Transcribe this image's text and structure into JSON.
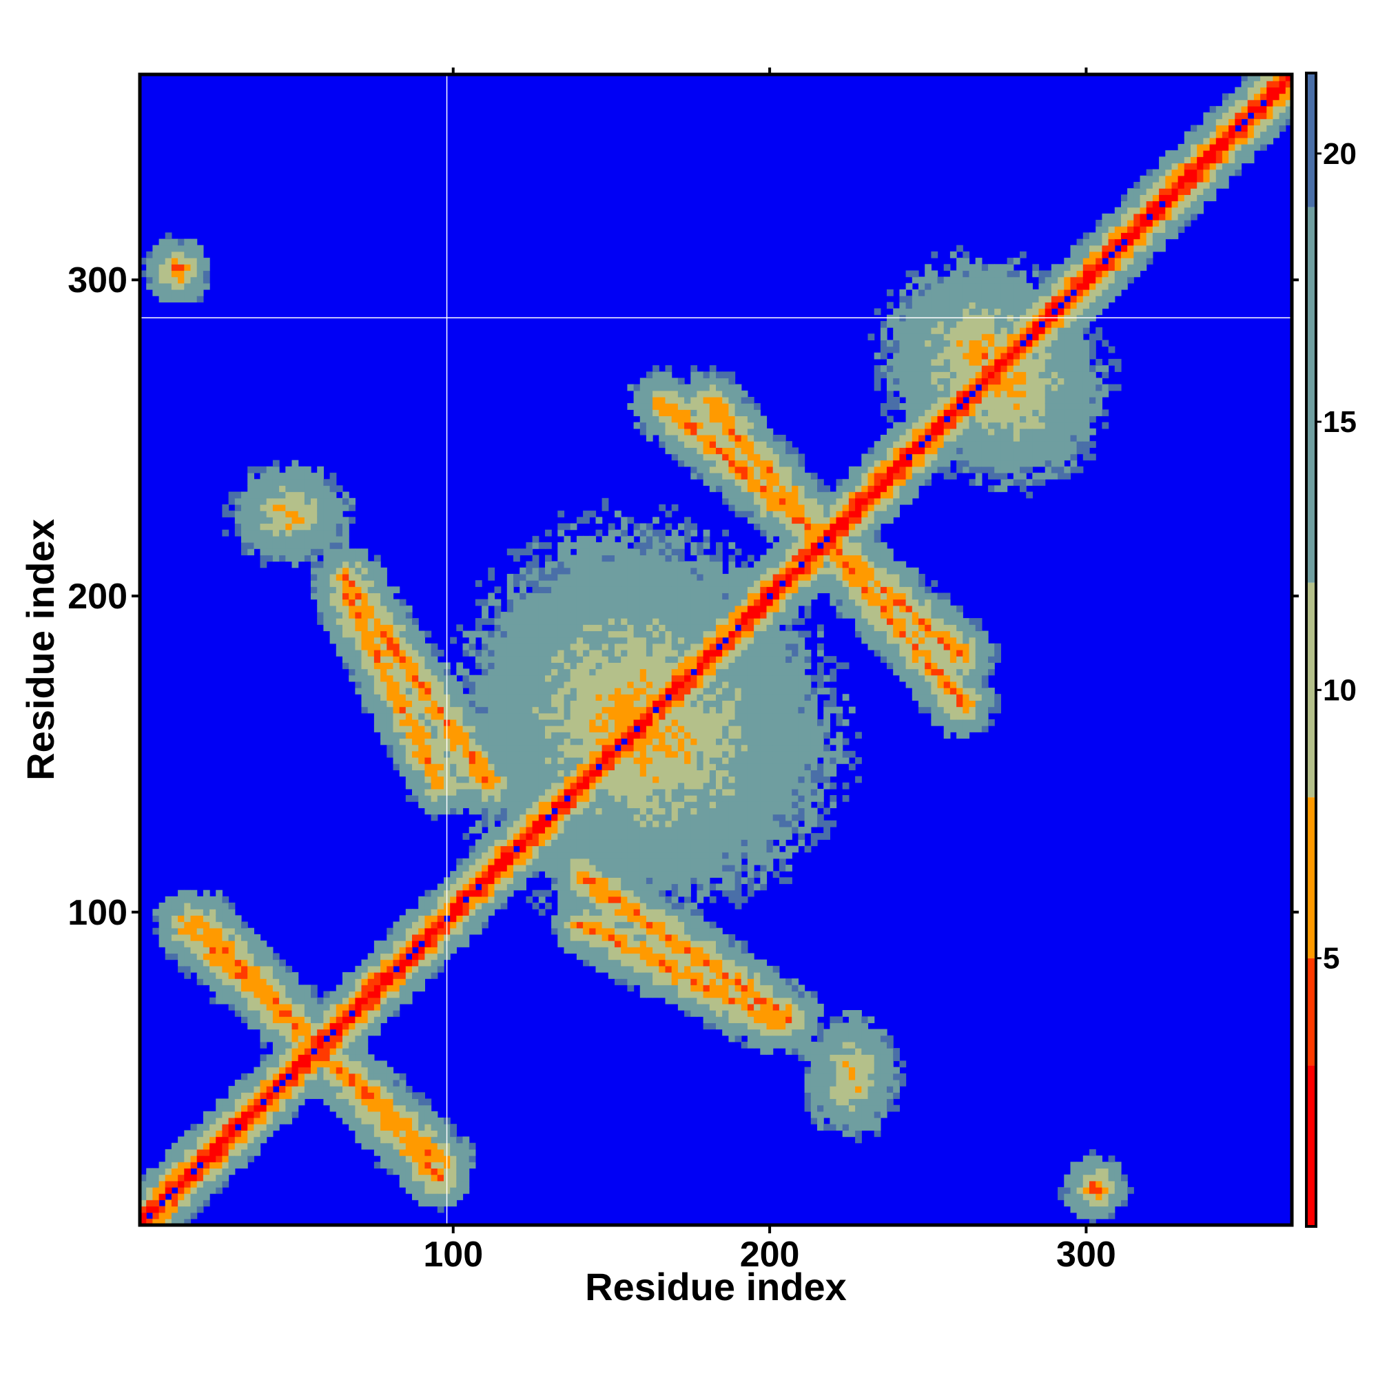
{
  "chart_data": {
    "type": "heatmap",
    "title": "",
    "xlabel": "Residue index",
    "ylabel": "Residue index",
    "xlim": [
      1,
      365
    ],
    "ylim": [
      1,
      365
    ],
    "x_ticks": [
      100,
      200,
      300
    ],
    "y_ticks": [
      100,
      200,
      300
    ],
    "x_tick_labels": [
      "100",
      "200",
      "300"
    ],
    "y_tick_labels": [
      "100",
      "200",
      "300"
    ],
    "colorbar": {
      "range": [
        0,
        21.5
      ],
      "ticks": [
        5,
        10,
        15,
        20
      ],
      "tick_labels": [
        "5",
        "10",
        "15",
        "20"
      ],
      "colors": [
        {
          "from": 0,
          "to": 3,
          "color": "#ff0000"
        },
        {
          "from": 3,
          "to": 5,
          "color": "#ff3a00"
        },
        {
          "from": 5,
          "to": 8,
          "color": "#ff9a00"
        },
        {
          "from": 8,
          "to": 12,
          "color": "#b4c08a"
        },
        {
          "from": 12,
          "to": 19,
          "color": "#6f9ea0"
        },
        {
          "from": 19,
          "to": 21.5,
          "color": "#4a6fa8"
        }
      ]
    },
    "background_value": 21.5,
    "background_color": "#0000f5",
    "reference_lines": {
      "x": 98,
      "y": 288
    },
    "features": [
      {
        "kind": "diagonal",
        "from": 1,
        "to": 365,
        "note": "distance < 5 near diagonal"
      },
      {
        "kind": "anti_band",
        "x": [
          15,
          95
        ],
        "y": [
          95,
          20
        ]
      },
      {
        "kind": "anti_band",
        "x": [
          65,
          110
        ],
        "y": [
          205,
          140
        ]
      },
      {
        "kind": "anti_band",
        "x": [
          140,
          200
        ],
        "y": [
          95,
          65
        ]
      },
      {
        "kind": "anti_band",
        "x": [
          180,
          260
        ],
        "y": [
          260,
          165
        ]
      },
      {
        "kind": "cluster",
        "x": [
          120,
          200
        ],
        "y": [
          120,
          190
        ]
      },
      {
        "kind": "cluster",
        "x": [
          35,
          60
        ],
        "y": [
          215,
          235
        ]
      },
      {
        "kind": "cluster",
        "x": [
          255,
          295
        ],
        "y": [
          245,
          285
        ]
      },
      {
        "kind": "spot",
        "x": 12,
        "y": 302
      },
      {
        "kind": "spot",
        "x": 302,
        "y": 12
      }
    ]
  }
}
